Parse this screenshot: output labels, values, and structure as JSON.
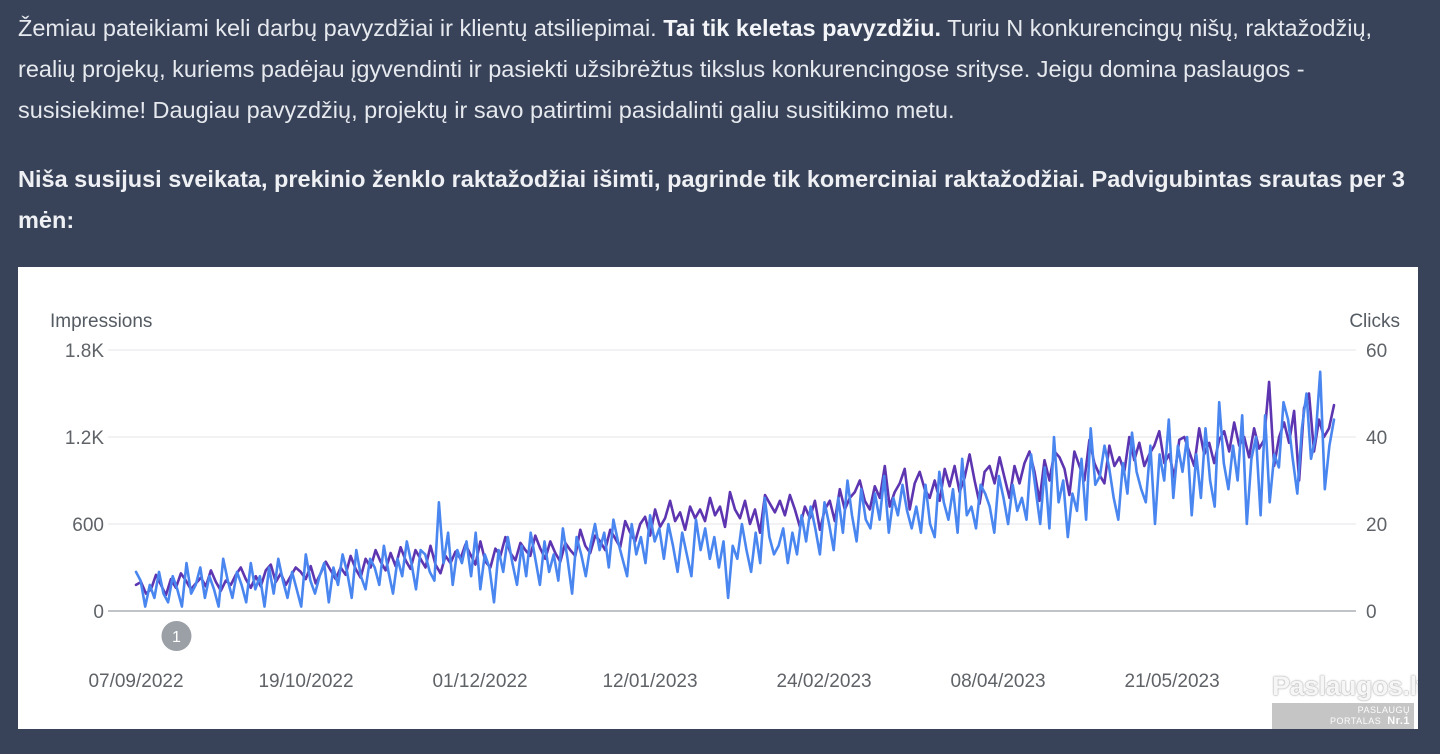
{
  "intro": {
    "part1": "Žemiau pateikiami keli darbų pavyzdžiai ir klientų atsiliepimai. ",
    "bold": "Tai tik keletas pavyzdžiu.",
    "part2": " Turiu N konkurencingų nišų, raktažodžių, realių projekų, kuriems padėjau įgyvendinti ir pasiekti užsibrėžtus tikslus konkurencingose srityse. Jeigu domina paslaugos - susisiekime! Daugiau pavyzdžių, projektų ir savo patirtimi pasidalinti galiu susitikimo metu."
  },
  "niche_heading": "Niša susijusi sveikata, prekinio ženklo raktažodžiai išimti, pagrinde tik komerciniai raktažodžiai. Padvigubintas srautas per 3 mėn:",
  "watermark": {
    "main": "Paslaugos.lt",
    "sub": "PASLAUGŲ PORTALAS",
    "nr": "Nr.1"
  },
  "chart_data": {
    "type": "line",
    "y_left_label": "Impressions",
    "y_right_label": "Clicks",
    "y_left_ticks": [
      "0",
      "600",
      "1.2K",
      "1.8K"
    ],
    "y_right_ticks": [
      "0",
      "20",
      "40",
      "60"
    ],
    "y_left_range": [
      0,
      1800
    ],
    "y_right_range": [
      0,
      60
    ],
    "x_tick_labels": [
      "07/09/2022",
      "19/10/2022",
      "01/12/2022",
      "12/01/2023",
      "24/02/2023",
      "08/04/2023",
      "21/05/2023"
    ],
    "x_range_days": [
      "2022-09-07",
      "2023-06-30"
    ],
    "annotation": {
      "label": "1",
      "date": "2022-09-17"
    },
    "gridlines": true,
    "series": [
      {
        "axis": "left",
        "color": "#5e35b1",
        "values": [
          180,
          200,
          120,
          150,
          250,
          180,
          110,
          220,
          160,
          260,
          210,
          150,
          190,
          230,
          170,
          280,
          200,
          140,
          210,
          180,
          250,
          300,
          220,
          160,
          240,
          170,
          280,
          320,
          200,
          260,
          180,
          240,
          300,
          270,
          220,
          310,
          190,
          260,
          340,
          280,
          220,
          300,
          250,
          380,
          290,
          230,
          360,
          300,
          420,
          340,
          280,
          400,
          310,
          440,
          350,
          290,
          420,
          360,
          300,
          450,
          320,
          260,
          380,
          330,
          410,
          360,
          460,
          390,
          320,
          480,
          340,
          300,
          430,
          380,
          510,
          400,
          350,
          470,
          420,
          380,
          520,
          430,
          360,
          480,
          400,
          340,
          470,
          420,
          380,
          560,
          450,
          400,
          520,
          480,
          420,
          560,
          500,
          440,
          620,
          540,
          480,
          600,
          650,
          520,
          700,
          580,
          640,
          760,
          620,
          680,
          560,
          720,
          640,
          700,
          620,
          780,
          660,
          720,
          580,
          820,
          700,
          640,
          760,
          600,
          700,
          540,
          800,
          740,
          680,
          760,
          660,
          800,
          700,
          580,
          720,
          640,
          760,
          560,
          700,
          760,
          620,
          840,
          700,
          780,
          820,
          900,
          760,
          700,
          860,
          780,
          1000,
          720,
          820,
          880,
          980,
          700,
          880,
          960,
          840,
          780,
          900,
          760,
          980,
          860,
          1000,
          820,
          920,
          1080,
          900,
          740,
          960,
          1000,
          880,
          1060,
          920,
          780,
          1000,
          880,
          1020,
          1100,
          960,
          760,
          1040,
          900,
          1100,
          1060,
          980,
          800,
          1100,
          1000,
          900,
          1180,
          1020,
          940,
          880,
          1140,
          1000,
          1060,
          960,
          1200,
          1040,
          1160,
          1000,
          1080,
          1140,
          1240,
          1020,
          1080,
          920,
          1180,
          1200,
          1100,
          1000,
          1260,
          1080,
          1160,
          1020,
          1180,
          1240,
          1100,
          1300,
          1140,
          1200,
          1060,
          1260,
          1120,
          1180,
          1580,
          1000,
          1200,
          1300,
          1160,
          1380,
          900,
          1400,
          1500,
          1100,
          1320,
          1200,
          1260,
          1420
        ]
      },
      {
        "axis": "right",
        "color": "#4a86f0",
        "values": [
          9,
          7,
          1,
          6,
          3,
          9,
          4,
          2,
          8,
          5,
          1,
          11,
          4,
          6,
          10,
          3,
          8,
          5,
          1,
          12,
          7,
          3,
          9,
          6,
          2,
          11,
          5,
          8,
          1,
          10,
          4,
          12,
          7,
          3,
          9,
          5,
          1,
          13,
          7,
          4,
          8,
          11,
          2,
          10,
          6,
          13,
          9,
          3,
          14,
          8,
          5,
          12,
          10,
          6,
          15,
          9,
          4,
          12,
          8,
          16,
          11,
          5,
          14,
          13,
          9,
          7,
          25,
          11,
          18,
          6,
          14,
          11,
          16,
          8,
          18,
          5,
          13,
          10,
          2,
          14,
          9,
          17,
          11,
          6,
          15,
          8,
          18,
          12,
          6,
          16,
          9,
          13,
          7,
          19,
          12,
          4,
          17,
          13,
          8,
          15,
          20,
          14,
          18,
          10,
          21,
          16,
          12,
          8,
          20,
          13,
          17,
          11,
          22,
          16,
          19,
          12,
          20,
          15,
          9,
          18,
          13,
          8,
          21,
          14,
          19,
          12,
          17,
          10,
          16,
          3,
          15,
          12,
          20,
          14,
          9,
          18,
          11,
          26,
          17,
          13,
          15,
          19,
          11,
          18,
          13,
          22,
          16,
          24,
          19,
          13,
          25,
          20,
          14,
          26,
          18,
          30,
          22,
          16,
          28,
          21,
          19,
          27,
          21,
          31,
          18,
          26,
          22,
          29,
          23,
          19,
          24,
          18,
          29,
          20,
          17,
          32,
          25,
          21,
          28,
          18,
          35,
          22,
          24,
          19,
          29,
          27,
          24,
          18,
          31,
          26,
          20,
          29,
          23,
          26,
          21,
          36,
          28,
          20,
          33,
          19,
          40,
          25,
          30,
          17,
          27,
          23,
          35,
          21,
          42,
          29,
          31,
          38,
          33,
          26,
          21,
          34,
          27,
          41,
          32,
          28,
          25,
          38,
          20,
          36,
          30,
          44,
          26,
          38,
          32,
          40,
          22,
          36,
          26,
          42,
          30,
          24,
          48,
          34,
          28,
          38,
          30,
          45,
          20,
          35,
          40,
          22,
          45,
          25,
          36,
          33,
          48,
          44,
          35,
          27,
          42,
          50,
          35,
          40,
          55,
          28,
          38,
          44
        ]
      }
    ]
  }
}
